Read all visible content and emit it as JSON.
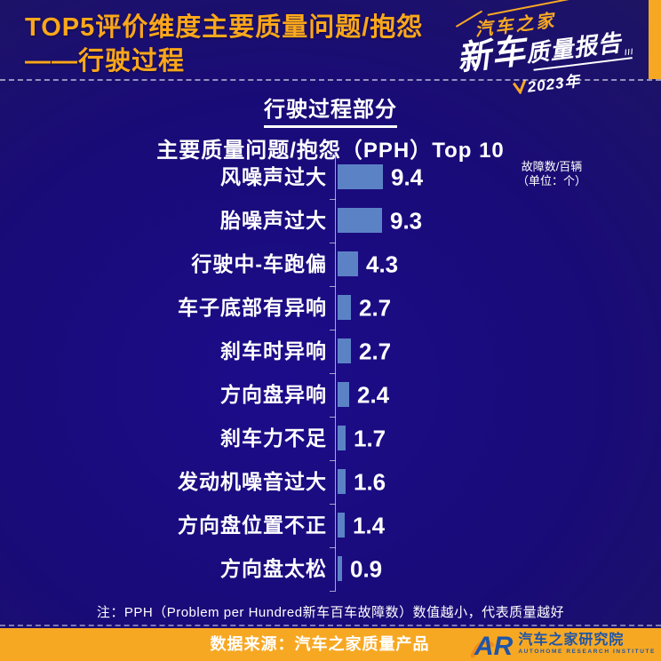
{
  "header": {
    "title_line1": "TOP5评价维度主要质量问题/抱怨",
    "title_line2": "——行驶过程",
    "logo": {
      "brand": "汽车之家",
      "product_big": "新车",
      "product_rest": "质量报告",
      "slashes": "///",
      "year": "2023年"
    }
  },
  "chart_data": {
    "type": "bar",
    "orientation": "horizontal",
    "title": "行驶过程部分",
    "subtitle": "主要质量问题/抱怨（PPH）Top 10",
    "unit_note_line1": "故障数/百辆",
    "unit_note_line2": "（单位：个）",
    "categories": [
      "风噪声过大",
      "胎噪声过大",
      "行驶中-车跑偏",
      "车子底部有异响",
      "刹车时异响",
      "方向盘异响",
      "刹车力不足",
      "发动机噪音过大",
      "方向盘位置不正",
      "方向盘太松"
    ],
    "values": [
      9.4,
      9.3,
      4.3,
      2.7,
      2.7,
      2.4,
      1.7,
      1.6,
      1.4,
      0.9
    ],
    "value_labels": [
      "9.4",
      "9.3",
      "4.3",
      "2.7",
      "2.7",
      "2.4",
      "1.7",
      "1.6",
      "1.4",
      "0.9"
    ],
    "xlim": [
      0,
      10
    ],
    "grid": false,
    "legend": "none",
    "bar_color": "#5c82c6"
  },
  "footnote": "注：PPH（Problem per Hundred新车百车故障数）数值越小，代表质量越好",
  "footer": {
    "source": "数据来源：汽车之家质量产品",
    "logo_letters": "AR",
    "org_name": "汽车之家研究院",
    "org_name_en": "AUTOHOME RESEARCH INSTITUTE"
  },
  "colors": {
    "accent_orange": "#f7a823",
    "title_orange": "#fba71b",
    "bar_blue": "#5c82c6",
    "background_blue": "#190b77",
    "footer_logo_blue": "#1f55a8"
  }
}
